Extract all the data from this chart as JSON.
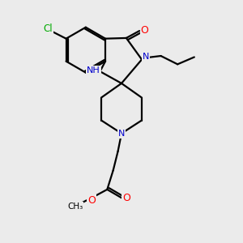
{
  "background_color": "#ebebeb",
  "atom_colors": {
    "C": "#000000",
    "N": "#0000cc",
    "O": "#ff0000",
    "Cl": "#00aa00",
    "H": "#555555"
  },
  "bond_color": "#000000",
  "bond_width": 1.6,
  "figsize": [
    3.0,
    3.0
  ],
  "dpi": 100,
  "xlim": [
    0,
    10
  ],
  "ylim": [
    0,
    10
  ]
}
